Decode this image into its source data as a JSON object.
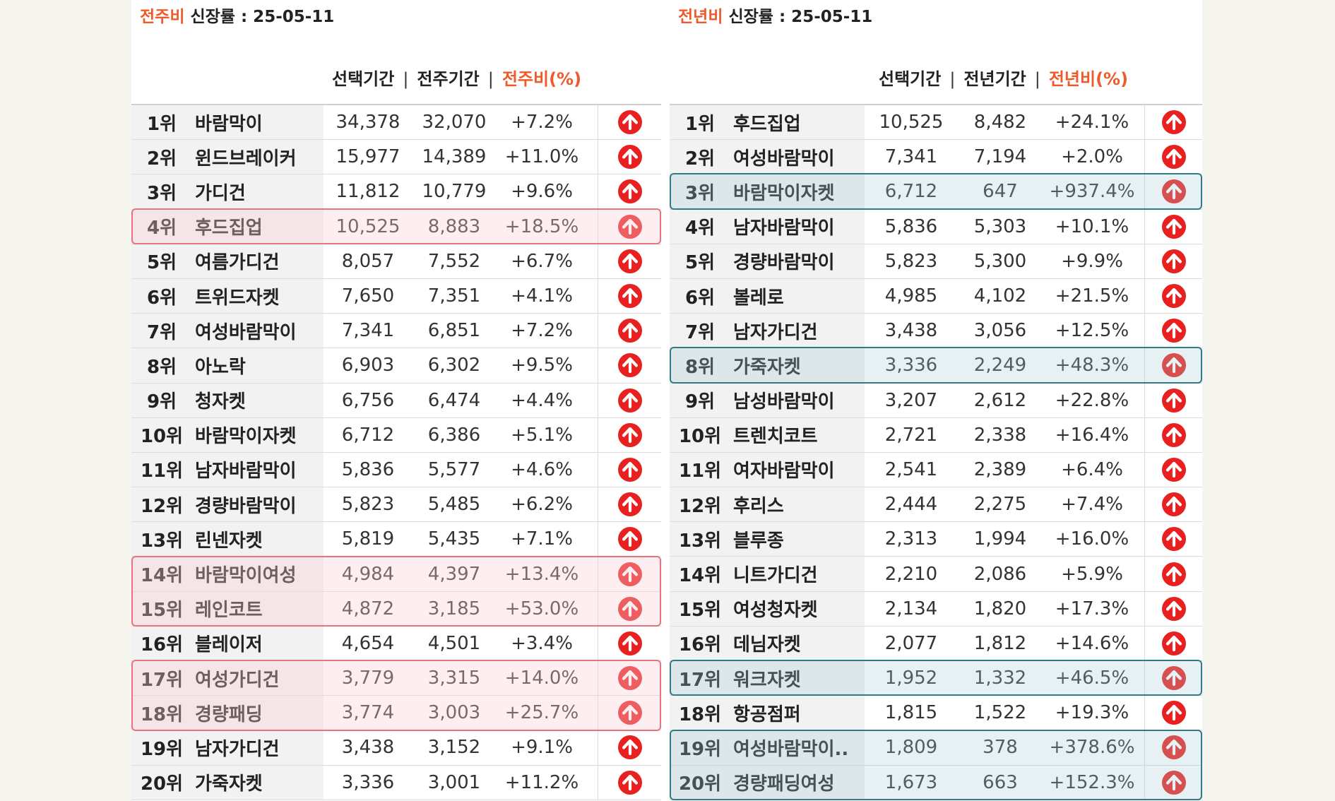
{
  "left": {
    "title_accent": "전주비",
    "title_rest": " 신장률  : 25-05-11",
    "header_col1": "선택기간",
    "header_col2": "전주기간",
    "header_col3": "전주비(%)",
    "rows": [
      {
        "rank": "1위",
        "keyword": "바람막이",
        "v1": "34,378",
        "v2": "32,070",
        "v3": "+7.2%"
      },
      {
        "rank": "2위",
        "keyword": "윈드브레이커",
        "v1": "15,977",
        "v2": "14,389",
        "v3": "+11.0%"
      },
      {
        "rank": "3위",
        "keyword": "가디건",
        "v1": "11,812",
        "v2": "10,779",
        "v3": "+9.6%"
      },
      {
        "rank": "4위",
        "keyword": "후드집업",
        "v1": "10,525",
        "v2": "8,883",
        "v3": "+18.5%"
      },
      {
        "rank": "5위",
        "keyword": "여름가디건",
        "v1": "8,057",
        "v2": "7,552",
        "v3": "+6.7%"
      },
      {
        "rank": "6위",
        "keyword": "트위드자켓",
        "v1": "7,650",
        "v2": "7,351",
        "v3": "+4.1%"
      },
      {
        "rank": "7위",
        "keyword": "여성바람막이",
        "v1": "7,341",
        "v2": "6,851",
        "v3": "+7.2%"
      },
      {
        "rank": "8위",
        "keyword": "아노락",
        "v1": "6,903",
        "v2": "6,302",
        "v3": "+9.5%"
      },
      {
        "rank": "9위",
        "keyword": "청자켓",
        "v1": "6,756",
        "v2": "6,474",
        "v3": "+4.4%"
      },
      {
        "rank": "10위",
        "keyword": "바람막이자켓",
        "v1": "6,712",
        "v2": "6,386",
        "v3": "+5.1%"
      },
      {
        "rank": "11위",
        "keyword": "남자바람막이",
        "v1": "5,836",
        "v2": "5,577",
        "v3": "+4.6%"
      },
      {
        "rank": "12위",
        "keyword": "경량바람막이",
        "v1": "5,823",
        "v2": "5,485",
        "v3": "+6.2%"
      },
      {
        "rank": "13위",
        "keyword": "린넨자켓",
        "v1": "5,819",
        "v2": "5,435",
        "v3": "+7.1%"
      },
      {
        "rank": "14위",
        "keyword": "바람막이여성",
        "v1": "4,984",
        "v2": "4,397",
        "v3": "+13.4%"
      },
      {
        "rank": "15위",
        "keyword": "레인코트",
        "v1": "4,872",
        "v2": "3,185",
        "v3": "+53.0%"
      },
      {
        "rank": "16위",
        "keyword": "블레이저",
        "v1": "4,654",
        "v2": "4,501",
        "v3": "+3.4%"
      },
      {
        "rank": "17위",
        "keyword": "여성가디건",
        "v1": "3,779",
        "v2": "3,315",
        "v3": "+14.0%"
      },
      {
        "rank": "18위",
        "keyword": "경량패딩",
        "v1": "3,774",
        "v2": "3,003",
        "v3": "+25.7%"
      },
      {
        "rank": "19위",
        "keyword": "남자가디건",
        "v1": "3,438",
        "v2": "3,152",
        "v3": "+9.1%"
      },
      {
        "rank": "20위",
        "keyword": "가죽자켓",
        "v1": "3,336",
        "v2": "3,001",
        "v3": "+11.2%"
      }
    ],
    "highlight_color": "#e8737a"
  },
  "right": {
    "title_accent": "전년비",
    "title_rest": " 신장률 : 25-05-11",
    "header_col1": "선택기간",
    "header_col2": "전년기간",
    "header_col3": "전년비(%)",
    "rows": [
      {
        "rank": "1위",
        "keyword": "후드집업",
        "v1": "10,525",
        "v2": "8,482",
        "v3": "+24.1%"
      },
      {
        "rank": "2위",
        "keyword": "여성바람막이",
        "v1": "7,341",
        "v2": "7,194",
        "v3": "+2.0%"
      },
      {
        "rank": "3위",
        "keyword": "바람막이자켓",
        "v1": "6,712",
        "v2": "647",
        "v3": "+937.4%"
      },
      {
        "rank": "4위",
        "keyword": "남자바람막이",
        "v1": "5,836",
        "v2": "5,303",
        "v3": "+10.1%"
      },
      {
        "rank": "5위",
        "keyword": "경량바람막이",
        "v1": "5,823",
        "v2": "5,300",
        "v3": "+9.9%"
      },
      {
        "rank": "6위",
        "keyword": "볼레로",
        "v1": "4,985",
        "v2": "4,102",
        "v3": "+21.5%"
      },
      {
        "rank": "7위",
        "keyword": "남자가디건",
        "v1": "3,438",
        "v2": "3,056",
        "v3": "+12.5%"
      },
      {
        "rank": "8위",
        "keyword": "가죽자켓",
        "v1": "3,336",
        "v2": "2,249",
        "v3": "+48.3%"
      },
      {
        "rank": "9위",
        "keyword": "남성바람막이",
        "v1": "3,207",
        "v2": "2,612",
        "v3": "+22.8%"
      },
      {
        "rank": "10위",
        "keyword": "트렌치코트",
        "v1": "2,721",
        "v2": "2,338",
        "v3": "+16.4%"
      },
      {
        "rank": "11위",
        "keyword": "여자바람막이",
        "v1": "2,541",
        "v2": "2,389",
        "v3": "+6.4%"
      },
      {
        "rank": "12위",
        "keyword": "후리스",
        "v1": "2,444",
        "v2": "2,275",
        "v3": "+7.4%"
      },
      {
        "rank": "13위",
        "keyword": "블루종",
        "v1": "2,313",
        "v2": "1,994",
        "v3": "+16.0%"
      },
      {
        "rank": "14위",
        "keyword": "니트가디건",
        "v1": "2,210",
        "v2": "2,086",
        "v3": "+5.9%"
      },
      {
        "rank": "15위",
        "keyword": "여성청자켓",
        "v1": "2,134",
        "v2": "1,820",
        "v3": "+17.3%"
      },
      {
        "rank": "16위",
        "keyword": "데님자켓",
        "v1": "2,077",
        "v2": "1,812",
        "v3": "+14.6%"
      },
      {
        "rank": "17위",
        "keyword": "워크자켓",
        "v1": "1,952",
        "v2": "1,332",
        "v3": "+46.5%"
      },
      {
        "rank": "18위",
        "keyword": "항공점퍼",
        "v1": "1,815",
        "v2": "1,522",
        "v3": "+19.3%"
      },
      {
        "rank": "19위",
        "keyword": "여성바람막이..",
        "v1": "1,809",
        "v2": "378",
        "v3": "+378.6%"
      },
      {
        "rank": "20위",
        "keyword": "경량패딩여성",
        "v1": "1,673",
        "v2": "663",
        "v3": "+152.3%"
      }
    ],
    "highlight_color": "#2f7b87"
  },
  "header_separator": "|",
  "icon": "arrow-up-circle-icon",
  "accent_color": "#f05a2a",
  "arrow_color": "#e8201f"
}
